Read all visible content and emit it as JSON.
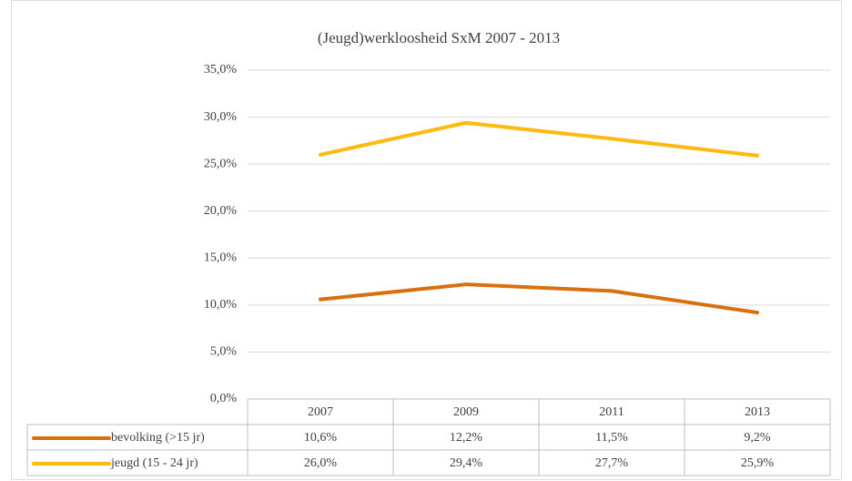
{
  "chart_data": {
    "type": "line",
    "title": "(Jeugd)werkloosheid SxM 2007 - 2013",
    "categories": [
      "2007",
      "2009",
      "2011",
      "2013"
    ],
    "series": [
      {
        "name": "bevolking (>15 jr)",
        "color": "#d9700f",
        "values": [
          10.6,
          12.2,
          11.5,
          9.2
        ],
        "value_labels": [
          "10,6%",
          "12,2%",
          "11,5%",
          "9,2%"
        ]
      },
      {
        "name": "jeugd (15 - 24 jr)",
        "color": "#ffb90f",
        "values": [
          26.0,
          29.4,
          27.7,
          25.9
        ],
        "value_labels": [
          "26,0%",
          "29,4%",
          "27,7%",
          "25,9%"
        ]
      }
    ],
    "ylim": [
      0,
      35
    ],
    "yticks": [
      {
        "value": 0,
        "label": "0,0%"
      },
      {
        "value": 5,
        "label": "5,0%"
      },
      {
        "value": 10,
        "label": "10,0%"
      },
      {
        "value": 15,
        "label": "15,0%"
      },
      {
        "value": 20,
        "label": "20,0%"
      },
      {
        "value": 25,
        "label": "25,0%"
      },
      {
        "value": 30,
        "label": "30,0%"
      },
      {
        "value": 35,
        "label": "35,0%"
      }
    ],
    "grid": true
  }
}
